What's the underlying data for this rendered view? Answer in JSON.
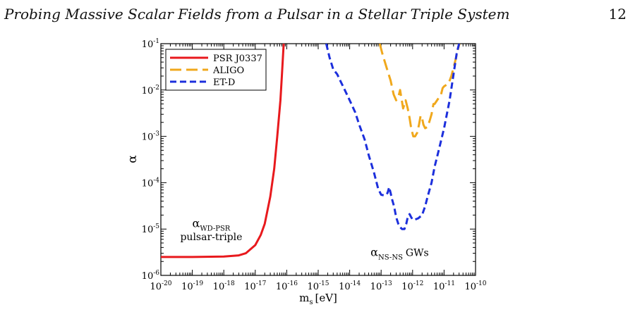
{
  "header": {
    "title": "Probing Massive Scalar Fields from a Pulsar in a Stellar Triple System",
    "page_number": "12"
  },
  "chart_data": {
    "type": "line",
    "xlabel": "m",
    "xlabel_sub": "s",
    "xlabel_unit": "[eV]",
    "ylabel": "α",
    "x_scale": "log",
    "y_scale": "log",
    "xlim": [
      1e-20,
      1e-10
    ],
    "ylim": [
      1e-06,
      0.1
    ],
    "x_ticks": [
      {
        "value": 1e-20,
        "base": "10",
        "exp": "-20"
      },
      {
        "value": 1e-19,
        "base": "10",
        "exp": "-19"
      },
      {
        "value": 1e-18,
        "base": "10",
        "exp": "-18"
      },
      {
        "value": 1e-17,
        "base": "10",
        "exp": "-17"
      },
      {
        "value": 1e-16,
        "base": "10",
        "exp": "-16"
      },
      {
        "value": 1e-15,
        "base": "10",
        "exp": "-15"
      },
      {
        "value": 1e-14,
        "base": "10",
        "exp": "-14"
      },
      {
        "value": 1e-13,
        "base": "10",
        "exp": "-13"
      },
      {
        "value": 1e-12,
        "base": "10",
        "exp": "-12"
      },
      {
        "value": 1e-11,
        "base": "10",
        "exp": "-11"
      },
      {
        "value": 1e-10,
        "base": "10",
        "exp": "-10"
      }
    ],
    "y_ticks": [
      {
        "value": 1e-06,
        "base": "10",
        "exp": "-6"
      },
      {
        "value": 1e-05,
        "base": "10",
        "exp": "-5"
      },
      {
        "value": 0.0001,
        "base": "10",
        "exp": "-4"
      },
      {
        "value": 0.001,
        "base": "10",
        "exp": "-3"
      },
      {
        "value": 0.01,
        "base": "10",
        "exp": "-2"
      },
      {
        "value": 0.1,
        "base": "10",
        "exp": "-1"
      }
    ],
    "legend_position": "top-left",
    "grid": false,
    "series": [
      {
        "name": "PSR J0337",
        "color": "#e8191d",
        "dash": "solid",
        "x": [
          1e-20,
          1e-19,
          1e-18,
          3e-18,
          5e-18,
          1e-17,
          1.5e-17,
          2e-17,
          3e-17,
          4e-17,
          5e-17,
          6.3e-17,
          7e-17,
          8e-17
        ],
        "y": [
          2.5e-06,
          2.5e-06,
          2.55e-06,
          2.7e-06,
          3e-06,
          4.5e-06,
          7.5e-06,
          1.3e-05,
          5e-05,
          0.0002,
          0.001,
          0.006,
          0.02,
          0.1
        ]
      },
      {
        "name": "ALIGO",
        "color": "#f0a81c",
        "dash": "long",
        "x": [
          9e-14,
          1.1e-13,
          1.5e-13,
          2e-13,
          2.5e-13,
          3e-13,
          3.6e-13,
          4e-13,
          5e-13,
          6e-13,
          7e-13,
          8e-13,
          9e-13,
          1.05e-12,
          1.2e-12,
          1.4e-12,
          1.6e-12,
          1.8e-12,
          2e-12,
          2.2e-12,
          2.5e-12,
          3e-12,
          3.5e-12,
          4e-12,
          4.6e-12,
          5e-12,
          6e-12,
          7e-12,
          8e-12,
          9e-12,
          1e-11,
          1.2e-11,
          1.4e-11,
          1.7e-11,
          2e-11,
          2.4e-11,
          2.8e-11,
          3.1e-11
        ],
        "y": [
          0.1,
          0.06,
          0.03,
          0.016,
          0.008,
          0.006,
          0.0075,
          0.01,
          0.004,
          0.006,
          0.004,
          0.0025,
          0.0015,
          0.001,
          0.001,
          0.0012,
          0.0018,
          0.0028,
          0.0025,
          0.0018,
          0.0015,
          0.0016,
          0.0022,
          0.003,
          0.005,
          0.005,
          0.006,
          0.007,
          0.008,
          0.011,
          0.012,
          0.013,
          0.014,
          0.02,
          0.03,
          0.05,
          0.08,
          0.1
        ]
      },
      {
        "name": "ET-D",
        "color": "#1c2fdc",
        "dash": "short",
        "x": [
          1.8e-15,
          2.3e-15,
          3e-15,
          4e-15,
          5e-15,
          7e-15,
          1e-14,
          1.5e-14,
          2e-14,
          3e-14,
          4e-14,
          6e-14,
          8e-14,
          1e-13,
          1.3e-13,
          1.6e-13,
          1.8e-13,
          2e-13,
          2.2e-13,
          2.6e-13,
          3e-13,
          3.5e-13,
          4e-13,
          4.6e-13,
          5.5e-13,
          6.3e-13,
          7e-13,
          8e-13,
          9e-13,
          1e-12,
          1.2e-12,
          1.5e-12,
          2e-12,
          2.5e-12,
          3e-12,
          4e-12,
          5e-12,
          7e-12,
          1e-11,
          1.5e-11,
          2e-11,
          2.5e-11,
          3e-11
        ],
        "y": [
          0.1,
          0.05,
          0.028,
          0.022,
          0.016,
          0.01,
          0.006,
          0.0033,
          0.0018,
          0.00085,
          0.0004,
          0.00016,
          7.5e-05,
          5.5e-05,
          5.3e-05,
          6e-05,
          8e-05,
          6e-05,
          4.5e-05,
          3e-05,
          1.8e-05,
          1.3e-05,
          1.1e-05,
          1e-05,
          1e-05,
          1.3e-05,
          1.8e-05,
          2.1e-05,
          1.8e-05,
          1.6e-05,
          1.6e-05,
          1.7e-05,
          2e-05,
          3.1e-05,
          5e-05,
          0.0001,
          0.00022,
          0.00055,
          0.0015,
          0.006,
          0.022,
          0.06,
          0.1
        ]
      }
    ],
    "annotations": [
      {
        "id": "alpha-wd-psr",
        "main": "α",
        "sub": "WD-PSR",
        "x": 4e-19,
        "y": 1.1e-05
      },
      {
        "id": "pulsar-triple",
        "text": "pulsar-triple",
        "x": 4e-19,
        "y": 5.8e-06
      },
      {
        "id": "alpha-ns-ns",
        "main": "α",
        "sub": "NS-NS",
        "x": 1.5e-13,
        "y": 2.6e-06
      },
      {
        "id": "gws",
        "text": "GWs",
        "x": 1.4e-12,
        "y": 2.6e-06
      }
    ]
  }
}
